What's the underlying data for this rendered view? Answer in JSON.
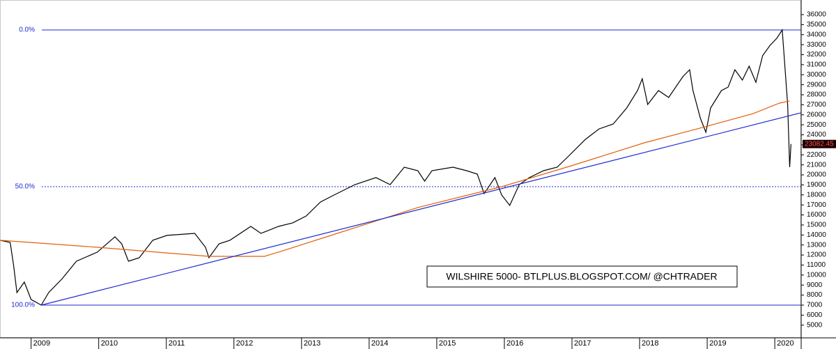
{
  "chart_data": {
    "type": "line",
    "annotation": "WILSHIRE 5000- BTLPLUS.BLOGSPOT.COM/ @CHTRADER",
    "xlim": [
      2008.54,
      2020.39
    ],
    "xticks": [
      2009,
      2010,
      2011,
      2012,
      2013,
      2014,
      2015,
      2016,
      2017,
      2018,
      2019,
      2020
    ],
    "ylim": [
      3730,
      37460
    ],
    "yticks": [
      5000,
      6000,
      7000,
      8000,
      9000,
      10000,
      11000,
      12000,
      13000,
      14000,
      15000,
      16000,
      17000,
      18000,
      19000,
      20000,
      21000,
      22000,
      23000,
      24000,
      25000,
      26000,
      27000,
      28000,
      29000,
      30000,
      31000,
      32000,
      33000,
      34000,
      35000,
      36000
    ],
    "last_price": 23082.45,
    "levels": [
      {
        "label": "0.0%",
        "value": 34470,
        "style": "solid"
      },
      {
        "label": "50.0%",
        "value": 18820,
        "style": "dotted"
      },
      {
        "label": "100.0%",
        "value": 7000,
        "style": "solid"
      }
    ],
    "series": [
      {
        "color": "#000000",
        "width": 1.2,
        "x": [
          2008.54,
          2008.69,
          2008.74,
          2008.79,
          2008.9,
          2009.0,
          2009.15,
          2009.26,
          2009.46,
          2009.67,
          2009.98,
          2010.24,
          2010.34,
          2010.44,
          2010.6,
          2010.8,
          2011.01,
          2011.42,
          2011.58,
          2011.63,
          2011.78,
          2011.94,
          2012.25,
          2012.4,
          2012.66,
          2012.87,
          2013.07,
          2013.28,
          2013.48,
          2013.79,
          2014.1,
          2014.31,
          2014.52,
          2014.72,
          2014.82,
          2014.93,
          2015.24,
          2015.44,
          2015.6,
          2015.7,
          2015.86,
          2015.96,
          2016.08,
          2016.22,
          2016.37,
          2016.58,
          2016.78,
          2016.94,
          2017.2,
          2017.4,
          2017.61,
          2017.81,
          2017.97,
          2018.04,
          2018.12,
          2018.28,
          2018.43,
          2018.64,
          2018.74,
          2018.79,
          2018.9,
          2018.98,
          2019.05,
          2019.21,
          2019.31,
          2019.41,
          2019.52,
          2019.62,
          2019.72,
          2019.82,
          2019.93,
          2020.03,
          2020.11,
          2020.13,
          2020.16,
          2020.19,
          2020.22,
          2020.24
        ],
        "values": [
          13470,
          13260,
          11030,
          8250,
          9300,
          7560,
          7000,
          8250,
          9640,
          11380,
          12290,
          13820,
          13120,
          11380,
          11730,
          13470,
          13960,
          14160,
          12770,
          11730,
          13120,
          13470,
          14860,
          14160,
          14860,
          15210,
          15900,
          17290,
          17990,
          19030,
          19730,
          19030,
          20770,
          20420,
          19380,
          20420,
          20770,
          20420,
          20080,
          18130,
          19730,
          17990,
          16950,
          19030,
          19730,
          20420,
          20770,
          21810,
          23550,
          24590,
          25080,
          26680,
          28420,
          29600,
          27030,
          28420,
          27730,
          29810,
          30500,
          28420,
          25640,
          24250,
          26680,
          28420,
          28770,
          30500,
          29460,
          30850,
          29250,
          31900,
          32940,
          33640,
          34470,
          32590,
          29810,
          27030,
          20770,
          23082.45
        ]
      },
      {
        "color": "#e0600a",
        "width": 1.2,
        "x": [
          2008.54,
          2009.98,
          2011.63,
          2012.45,
          2012.66,
          2013.69,
          2014.72,
          2015.96,
          2016.99,
          2018.07,
          2018.85,
          2019.68,
          2020.07,
          2020.22
        ],
        "values": [
          13470,
          12770,
          11870,
          11870,
          12290,
          14510,
          16740,
          18820,
          20910,
          23200,
          24590,
          26120,
          27170,
          27380
        ]
      },
      {
        "color": "#1a2ad0",
        "width": 1.2,
        "x": [
          2009.15,
          2020.39
        ],
        "values": [
          7000,
          26200
        ]
      }
    ]
  }
}
